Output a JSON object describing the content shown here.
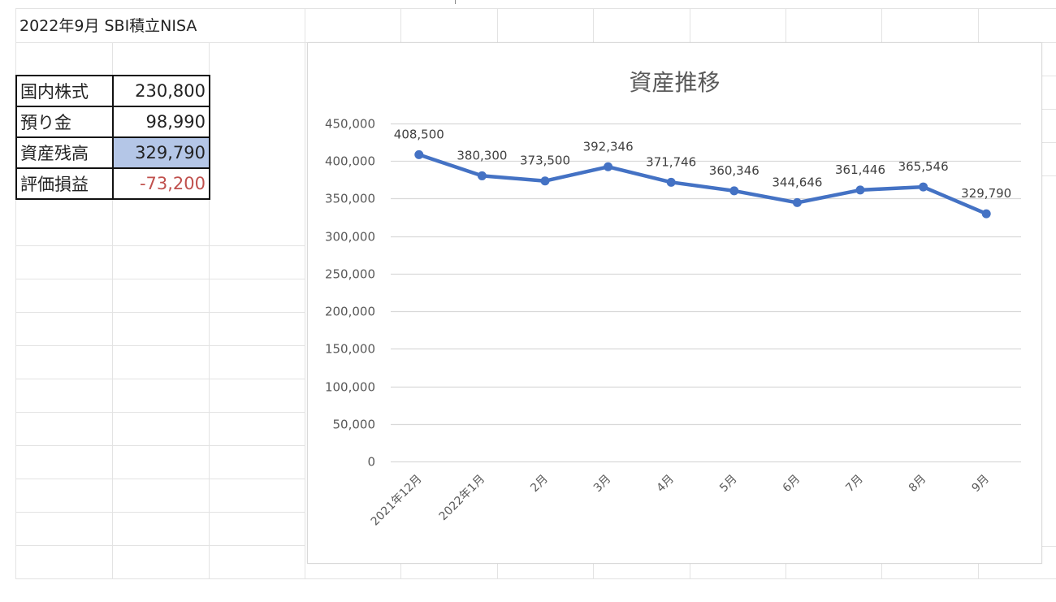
{
  "sheet": {
    "title": "2022年9月 SBI積立NISA",
    "summary": [
      {
        "label": "国内株式",
        "value": "230,800",
        "style": "normal"
      },
      {
        "label": "預り金",
        "value": "98,990",
        "style": "normal"
      },
      {
        "label": "資産残高",
        "value": "329,790",
        "style": "highlight"
      },
      {
        "label": "評価損益",
        "value": "-73,200",
        "style": "negative"
      }
    ]
  },
  "colors": {
    "series": "#4472c4",
    "highlight_fill": "#b4c6e7",
    "negative_text": "#c0504d",
    "gridline": "#d9d9d9",
    "axis_text": "#595959"
  },
  "chart_data": {
    "type": "line",
    "title": "資産推移",
    "xlabel": "",
    "ylabel": "",
    "categories": [
      "2021年12月",
      "2022年1月",
      "2月",
      "3月",
      "4月",
      "5月",
      "6月",
      "7月",
      "8月",
      "9月"
    ],
    "series": [
      {
        "name": "資産残高",
        "values": [
          408500,
          380300,
          373500,
          392346,
          371746,
          360346,
          344646,
          361446,
          365546,
          329790
        ]
      }
    ],
    "data_labels": [
      "408,500",
      "380,300",
      "373,500",
      "392,346",
      "371,746",
      "360,346",
      "344,646",
      "361,446",
      "365,546",
      "329,790"
    ],
    "yticks": [
      0,
      50000,
      100000,
      150000,
      200000,
      250000,
      300000,
      350000,
      400000,
      450000
    ],
    "ytick_labels": [
      "0",
      "50,000",
      "100,000",
      "150,000",
      "200,000",
      "250,000",
      "300,000",
      "350,000",
      "400,000",
      "450,000"
    ],
    "ylim": [
      0,
      450000
    ],
    "grid": true,
    "legend": "none",
    "markers": true,
    "x_label_rotation": -45
  }
}
